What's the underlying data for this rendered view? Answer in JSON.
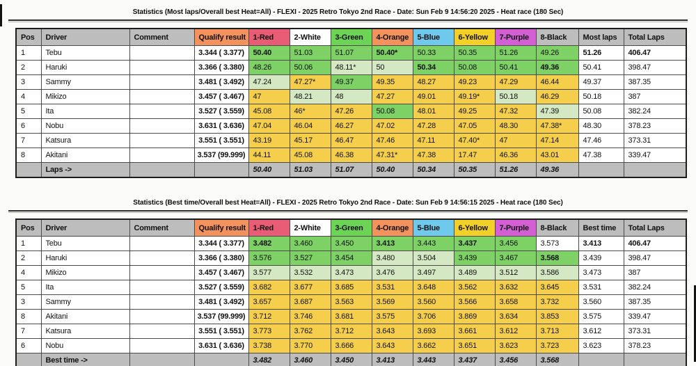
{
  "colors": {
    "tier": {
      "g": "#7ed164",
      "p": "#d5e8c4",
      "y": "#f5cf4b",
      "w": "#ffffff"
    },
    "header_fills": [
      "#bdbdbd",
      "#bdbdbd",
      "#bdbdbd",
      "#f4925e",
      "#e85d75",
      "#ffffff",
      "#6cd454",
      "#f4925e",
      "#6ec9ec",
      "#f2d028",
      "#d45fd4",
      "#bdbdbd",
      "#bdbdbd",
      "#bdbdbd"
    ],
    "footer_fill": "#bdbdbd",
    "cell_default": "#ffffff"
  },
  "columns": [
    "Pos",
    "Driver",
    "Comment",
    "Qualify result",
    "1-Red",
    "2-White",
    "3-Green",
    "4-Orange",
    "5-Blue",
    "6-Yellow",
    "7-Purple",
    "8-Black"
  ],
  "total_col": "Total Laps",
  "tables": [
    {
      "title": "Statistics (Most laps/Overall best Heat=All) - FLEXI - 2025 Retro Tokyo 2nd Race - Date: Sun Feb 9 14:56:20 2025 - Heat race (180 Sec)",
      "result_col": "Most laps",
      "footer_label": "Laps ->",
      "footer_values": [
        "50.40",
        "51.03",
        "51.07",
        "50.40",
        "50.34",
        "50.35",
        "51.26",
        "49.36"
      ],
      "rows": [
        {
          "pos": "1",
          "driver": "Tebu",
          "comment": "",
          "qualify": "3.344 ( 3.377)",
          "heats": [
            {
              "v": "50.40",
              "c": "g",
              "b": true
            },
            {
              "v": "51.03",
              "c": "g"
            },
            {
              "v": "51.07",
              "c": "g"
            },
            {
              "v": "50.40*",
              "c": "g",
              "b": true
            },
            {
              "v": "50.33",
              "c": "g"
            },
            {
              "v": "50.35",
              "c": "g"
            },
            {
              "v": "51.26",
              "c": "g"
            },
            {
              "v": "49.26",
              "c": "g"
            }
          ],
          "result": {
            "v": "51.26",
            "b": true
          },
          "total": {
            "v": "406.47",
            "b": true
          }
        },
        {
          "pos": "2",
          "driver": "Haruki",
          "comment": "",
          "qualify": "3.366 ( 3.380)",
          "heats": [
            {
              "v": "48.26",
              "c": "g"
            },
            {
              "v": "50.06",
              "c": "g"
            },
            {
              "v": "48.11*",
              "c": "p"
            },
            {
              "v": "50",
              "c": "p"
            },
            {
              "v": "50.34",
              "c": "g",
              "b": true
            },
            {
              "v": "50.08",
              "c": "g"
            },
            {
              "v": "50.41",
              "c": "g"
            },
            {
              "v": "49.36",
              "c": "g",
              "b": true
            }
          ],
          "result": {
            "v": "50.41"
          },
          "total": {
            "v": "398.47"
          }
        },
        {
          "pos": "3",
          "driver": "Sammy",
          "comment": "",
          "qualify": "3.481 ( 3.492)",
          "heats": [
            {
              "v": "47.24",
              "c": "p"
            },
            {
              "v": "47.27*",
              "c": "y"
            },
            {
              "v": "49.37",
              "c": "g"
            },
            {
              "v": "49.35",
              "c": "y"
            },
            {
              "v": "48.27",
              "c": "y"
            },
            {
              "v": "49.23",
              "c": "y"
            },
            {
              "v": "47.29",
              "c": "y"
            },
            {
              "v": "46.44",
              "c": "y"
            }
          ],
          "result": {
            "v": "49.37"
          },
          "total": {
            "v": "387.35"
          }
        },
        {
          "pos": "4",
          "driver": "Mikizo",
          "comment": "",
          "qualify": "3.457 ( 3.467)",
          "heats": [
            {
              "v": "47",
              "c": "y"
            },
            {
              "v": "48.21",
              "c": "p"
            },
            {
              "v": "48",
              "c": "p"
            },
            {
              "v": "47.27",
              "c": "y"
            },
            {
              "v": "49.01",
              "c": "y"
            },
            {
              "v": "49.19*",
              "c": "y"
            },
            {
              "v": "50.18",
              "c": "p"
            },
            {
              "v": "46.29",
              "c": "y"
            }
          ],
          "result": {
            "v": "50.18"
          },
          "total": {
            "v": "387"
          }
        },
        {
          "pos": "5",
          "driver": "Ita",
          "comment": "",
          "qualify": "3.527 ( 3.559)",
          "heats": [
            {
              "v": "45.08",
              "c": "y"
            },
            {
              "v": "46*",
              "c": "y"
            },
            {
              "v": "47.26",
              "c": "y"
            },
            {
              "v": "50.08",
              "c": "g"
            },
            {
              "v": "48.01",
              "c": "y"
            },
            {
              "v": "49.25",
              "c": "y"
            },
            {
              "v": "47.32",
              "c": "y"
            },
            {
              "v": "47.39",
              "c": "p"
            }
          ],
          "result": {
            "v": "50.08"
          },
          "total": {
            "v": "382.24"
          }
        },
        {
          "pos": "6",
          "driver": "Nobu",
          "comment": "",
          "qualify": "3.631 ( 3.636)",
          "heats": [
            {
              "v": "47.04",
              "c": "y"
            },
            {
              "v": "46.04",
              "c": "y"
            },
            {
              "v": "46.27",
              "c": "y"
            },
            {
              "v": "47.02",
              "c": "y"
            },
            {
              "v": "47.28",
              "c": "y"
            },
            {
              "v": "47.05",
              "c": "y"
            },
            {
              "v": "48.30",
              "c": "y"
            },
            {
              "v": "47.38*",
              "c": "y"
            }
          ],
          "result": {
            "v": "48.30"
          },
          "total": {
            "v": "378.23"
          }
        },
        {
          "pos": "7",
          "driver": "Katsura",
          "comment": "",
          "qualify": "3.551 ( 3.551)",
          "heats": [
            {
              "v": "43.19",
              "c": "y"
            },
            {
              "v": "45.17",
              "c": "y"
            },
            {
              "v": "46.47",
              "c": "y"
            },
            {
              "v": "47.46",
              "c": "y"
            },
            {
              "v": "47.11",
              "c": "y"
            },
            {
              "v": "47.40*",
              "c": "y"
            },
            {
              "v": "47",
              "c": "y"
            },
            {
              "v": "47.14",
              "c": "y"
            }
          ],
          "result": {
            "v": "47.46"
          },
          "total": {
            "v": "373.31"
          }
        },
        {
          "pos": "8",
          "driver": "Akitani",
          "comment": "",
          "qualify": "3.537 (99.999)",
          "heats": [
            {
              "v": "44.11",
              "c": "y"
            },
            {
              "v": "45.08",
              "c": "y"
            },
            {
              "v": "46.38",
              "c": "y"
            },
            {
              "v": "47.31*",
              "c": "y"
            },
            {
              "v": "47.38",
              "c": "y"
            },
            {
              "v": "17.47",
              "c": "y"
            },
            {
              "v": "46.36",
              "c": "y"
            },
            {
              "v": "43.01",
              "c": "y"
            }
          ],
          "result": {
            "v": "47.38"
          },
          "total": {
            "v": "339.47"
          }
        }
      ]
    },
    {
      "title": "Statistics (Best time/Overall best Heat=All) - FLEXI - 2025 Retro Tokyo 2nd Race - Date: Sun Feb 9 14:56:15 2025 - Heat race (180 Sec)",
      "result_col": "Best time",
      "footer_label": "Best time ->",
      "footer_values": [
        "3.482",
        "3.460",
        "3.450",
        "3.413",
        "3.443",
        "3.437",
        "3.456",
        "3.568"
      ],
      "rows": [
        {
          "pos": "1",
          "driver": "Tebu",
          "comment": "",
          "qualify": "3.344 ( 3.377)",
          "heats": [
            {
              "v": "3.482",
              "c": "g",
              "b": true
            },
            {
              "v": "3.460",
              "c": "g"
            },
            {
              "v": "3.450",
              "c": "g"
            },
            {
              "v": "3.413",
              "c": "g",
              "b": true
            },
            {
              "v": "3.443",
              "c": "g"
            },
            {
              "v": "3.437",
              "c": "g",
              "b": true
            },
            {
              "v": "3.456",
              "c": "g"
            },
            {
              "v": "3.573",
              "c": "w"
            }
          ],
          "result": {
            "v": "3.413",
            "b": true
          },
          "total": {
            "v": "406.47",
            "b": true
          }
        },
        {
          "pos": "2",
          "driver": "Haruki",
          "comment": "",
          "qualify": "3.366 ( 3.380)",
          "heats": [
            {
              "v": "3.576",
              "c": "g"
            },
            {
              "v": "3.527",
              "c": "g"
            },
            {
              "v": "3.454",
              "c": "g"
            },
            {
              "v": "3.480",
              "c": "p"
            },
            {
              "v": "3.504",
              "c": "p"
            },
            {
              "v": "3.439",
              "c": "g"
            },
            {
              "v": "3.467",
              "c": "g"
            },
            {
              "v": "3.568",
              "c": "g",
              "b": true
            }
          ],
          "result": {
            "v": "3.439"
          },
          "total": {
            "v": "398.47"
          }
        },
        {
          "pos": "4",
          "driver": "Mikizo",
          "comment": "",
          "qualify": "3.457 ( 3.467)",
          "heats": [
            {
              "v": "3.577",
              "c": "p"
            },
            {
              "v": "3.532",
              "c": "p"
            },
            {
              "v": "3.473",
              "c": "p"
            },
            {
              "v": "3.476",
              "c": "p"
            },
            {
              "v": "3.497",
              "c": "p"
            },
            {
              "v": "3.489",
              "c": "p"
            },
            {
              "v": "3.512",
              "c": "p"
            },
            {
              "v": "3.586",
              "c": "p"
            }
          ],
          "result": {
            "v": "3.473"
          },
          "total": {
            "v": "387"
          }
        },
        {
          "pos": "5",
          "driver": "Ita",
          "comment": "",
          "qualify": "3.527 ( 3.559)",
          "heats": [
            {
              "v": "3.682",
              "c": "y"
            },
            {
              "v": "3.677",
              "c": "y"
            },
            {
              "v": "3.685",
              "c": "y"
            },
            {
              "v": "3.531",
              "c": "y"
            },
            {
              "v": "3.648",
              "c": "y"
            },
            {
              "v": "3.562",
              "c": "y"
            },
            {
              "v": "3.632",
              "c": "y"
            },
            {
              "v": "3.645",
              "c": "y"
            }
          ],
          "result": {
            "v": "3.531"
          },
          "total": {
            "v": "382.24"
          }
        },
        {
          "pos": "3",
          "driver": "Sammy",
          "comment": "",
          "qualify": "3.481 ( 3.492)",
          "heats": [
            {
              "v": "3.657",
              "c": "y"
            },
            {
              "v": "3.687",
              "c": "y"
            },
            {
              "v": "3.563",
              "c": "y"
            },
            {
              "v": "3.569",
              "c": "y"
            },
            {
              "v": "3.560",
              "c": "y"
            },
            {
              "v": "3.566",
              "c": "y"
            },
            {
              "v": "3.658",
              "c": "y"
            },
            {
              "v": "3.732",
              "c": "y"
            }
          ],
          "result": {
            "v": "3.560"
          },
          "total": {
            "v": "387.35"
          }
        },
        {
          "pos": "8",
          "driver": "Akitani",
          "comment": "",
          "qualify": "3.537 (99.999)",
          "heats": [
            {
              "v": "3.712",
              "c": "y"
            },
            {
              "v": "3.746",
              "c": "y"
            },
            {
              "v": "3.681",
              "c": "y"
            },
            {
              "v": "3.575",
              "c": "y"
            },
            {
              "v": "3.706",
              "c": "y"
            },
            {
              "v": "3.869",
              "c": "y"
            },
            {
              "v": "3.634",
              "c": "y"
            },
            {
              "v": "3.853",
              "c": "y"
            }
          ],
          "result": {
            "v": "3.575"
          },
          "total": {
            "v": "339.47"
          }
        },
        {
          "pos": "7",
          "driver": "Katsura",
          "comment": "",
          "qualify": "3.551 ( 3.551)",
          "heats": [
            {
              "v": "3.773",
              "c": "y"
            },
            {
              "v": "3.762",
              "c": "y"
            },
            {
              "v": "3.712",
              "c": "y"
            },
            {
              "v": "3.643",
              "c": "y"
            },
            {
              "v": "3.693",
              "c": "y"
            },
            {
              "v": "3.661",
              "c": "y"
            },
            {
              "v": "3.612",
              "c": "y"
            },
            {
              "v": "3.713",
              "c": "y"
            }
          ],
          "result": {
            "v": "3.612"
          },
          "total": {
            "v": "373.31"
          }
        },
        {
          "pos": "6",
          "driver": "Nobu",
          "comment": "",
          "qualify": "3.631 ( 3.636)",
          "heats": [
            {
              "v": "3.738",
              "c": "y"
            },
            {
              "v": "3.770",
              "c": "y"
            },
            {
              "v": "3.666",
              "c": "y"
            },
            {
              "v": "3.643",
              "c": "y"
            },
            {
              "v": "3.662",
              "c": "y"
            },
            {
              "v": "3.651",
              "c": "y"
            },
            {
              "v": "3.623",
              "c": "y"
            },
            {
              "v": "3.723",
              "c": "y"
            }
          ],
          "result": {
            "v": "3.623"
          },
          "total": {
            "v": "378.23"
          }
        }
      ]
    }
  ]
}
